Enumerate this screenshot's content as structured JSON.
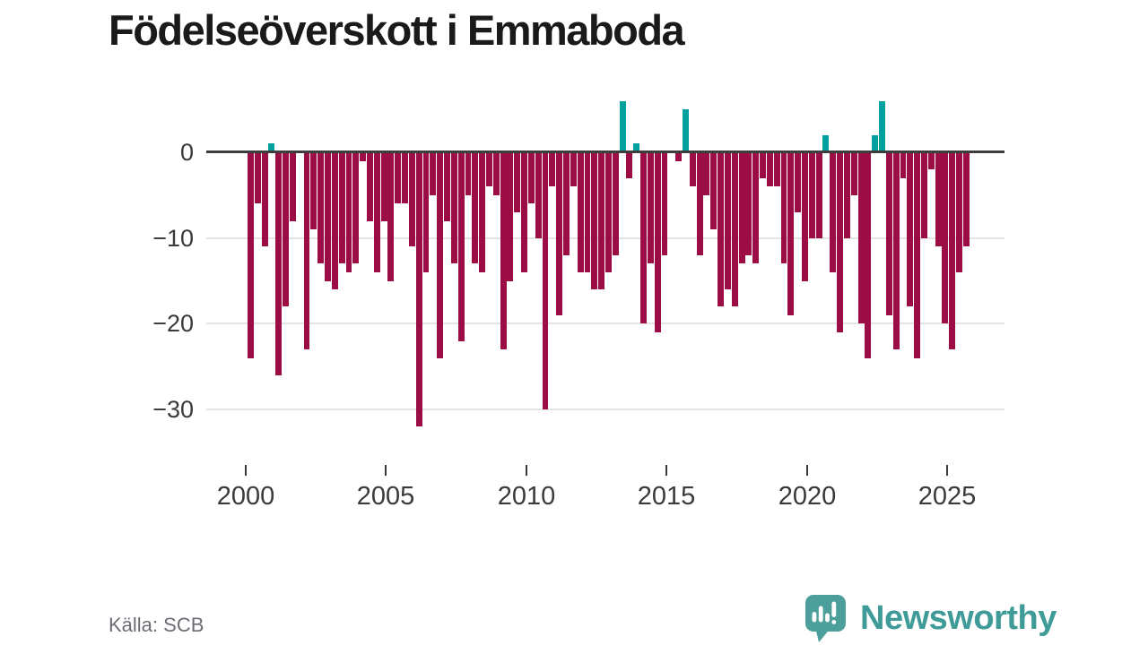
{
  "title": "Födelseöverskott i Emmaboda",
  "source": "Källa: SCB",
  "branding": {
    "name": "Newsworthy",
    "icon": "newsworthy-speech-bubble-bar-chart-icon",
    "icon_color": "#4d9f9c",
    "icon_glyph_color": "#ffffff",
    "text_color": "#3f9b97"
  },
  "chart_data": {
    "type": "bar",
    "title": "Födelseöverskott i Emmaboda",
    "frequency": "quarterly",
    "start_period": "2000-Q1",
    "end_period": "2025-Q3",
    "start_year": 2000,
    "start_quarter": 1,
    "values": [
      -24,
      -6,
      -11,
      1,
      -26,
      -18,
      -8,
      0,
      -23,
      -9,
      -13,
      -15,
      -16,
      -13,
      -14,
      -13,
      -1,
      -8,
      -14,
      -8,
      -15,
      -6,
      -6,
      -11,
      -32,
      -14,
      -5,
      -24,
      -8,
      -13,
      -22,
      -5,
      -13,
      -14,
      -4,
      -5,
      -23,
      -15,
      -7,
      -14,
      -6,
      -10,
      -30,
      -4,
      -19,
      -12,
      -4,
      -14,
      -14,
      -16,
      -16,
      -14,
      -12,
      6,
      -3,
      1,
      -20,
      -13,
      -21,
      -12,
      0,
      -1,
      5,
      -4,
      -12,
      -5,
      -9,
      -18,
      -16,
      -18,
      -13,
      -12,
      -13,
      -3,
      -4,
      -4,
      -13,
      -19,
      -7,
      -15,
      -10,
      -10,
      2,
      -14,
      -21,
      -10,
      -5,
      -20,
      -24,
      2,
      6,
      -19,
      -23,
      -3,
      -18,
      -24,
      -10,
      -2,
      -11,
      -20,
      -23,
      -14,
      -11
    ],
    "y_ticks": [
      0,
      -10,
      -20,
      -30
    ],
    "y_tick_labels": [
      "0",
      "−10",
      "−20",
      "−30"
    ],
    "x_tick_years": [
      2000,
      2005,
      2010,
      2015,
      2020,
      2025
    ],
    "x_tick_labels": [
      "2000",
      "2005",
      "2010",
      "2015",
      "2020",
      "2025"
    ],
    "ylim": [
      -33,
      7.5
    ],
    "grid": "horizontal",
    "legend": "none",
    "positive_color": "#00a19f",
    "negative_color": "#9c0d45",
    "axis_line_color": "#3d3d3d",
    "gridline_color": "#e4e4e4",
    "tick_label_color": "#3a3a3a"
  }
}
